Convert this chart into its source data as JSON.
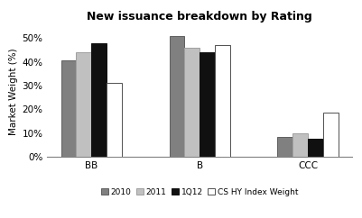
{
  "title": "New issuance breakdown by Rating",
  "categories": [
    "BB",
    "B",
    "CCC"
  ],
  "series": {
    "2010": [
      0.405,
      0.51,
      0.085
    ],
    "2011": [
      0.44,
      0.46,
      0.1
    ],
    "1Q12": [
      0.48,
      0.44,
      0.075
    ],
    "CS HY Index Weight": [
      0.31,
      0.47,
      0.185
    ]
  },
  "series_order": [
    "2010",
    "2011",
    "1Q12",
    "CS HY Index Weight"
  ],
  "colors": {
    "2010": "#808080",
    "2011": "#c0c0c0",
    "1Q12": "#101010",
    "CS HY Index Weight": "#ffffff"
  },
  "edge_colors": {
    "2010": "#606060",
    "2011": "#a0a0a0",
    "1Q12": "#101010",
    "CS HY Index Weight": "#505050"
  },
  "ylabel": "Market Weight (%)",
  "ylim": [
    0,
    0.55
  ],
  "yticks": [
    0.0,
    0.1,
    0.2,
    0.3,
    0.4,
    0.5
  ],
  "ytick_labels": [
    "0%",
    "10%",
    "20%",
    "30%",
    "40%",
    "50%"
  ],
  "background_color": "#ffffff",
  "bar_width": 0.14,
  "figsize": [
    4.02,
    2.42
  ],
  "dpi": 100
}
